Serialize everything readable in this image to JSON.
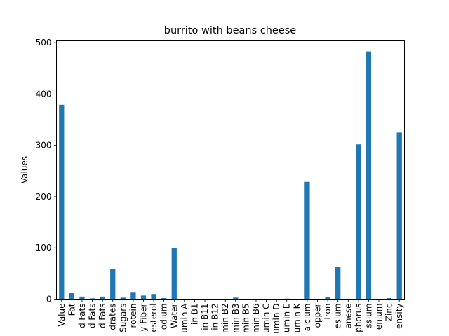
{
  "chart_data": {
    "type": "bar",
    "title": "burrito with beans cheese",
    "xlabel": "",
    "ylabel": "Values",
    "ylim": [
      0,
      505
    ],
    "yticks": [
      0,
      100,
      200,
      300,
      400,
      500
    ],
    "grid": false,
    "bar_color": "#1f77b4",
    "categories": [
      "Value",
      "Fat",
      "d Fats",
      "d Fats",
      "d Fats",
      "drates",
      "Sugars",
      "rotein",
      "y Fiber",
      "esterol",
      "odium",
      "Water",
      "umin A",
      "in B1",
      "in B11",
      "in B12",
      "min B2",
      "min B3",
      "min B5",
      "min B6",
      "umin C",
      "umin D",
      "umin E",
      "umin K",
      "alcium",
      "opper",
      "Iron",
      "esium",
      "anese",
      "phorus",
      "ssium",
      "enium",
      "Zinc",
      "ensity"
    ],
    "values": [
      379,
      12,
      5,
      1.5,
      5,
      58,
      3,
      14,
      7,
      10,
      2,
      99,
      0,
      0,
      0,
      0,
      0,
      3,
      0,
      0,
      0,
      0,
      1,
      0,
      229,
      0,
      4,
      63,
      0,
      302,
      483,
      0,
      2,
      325
    ]
  }
}
